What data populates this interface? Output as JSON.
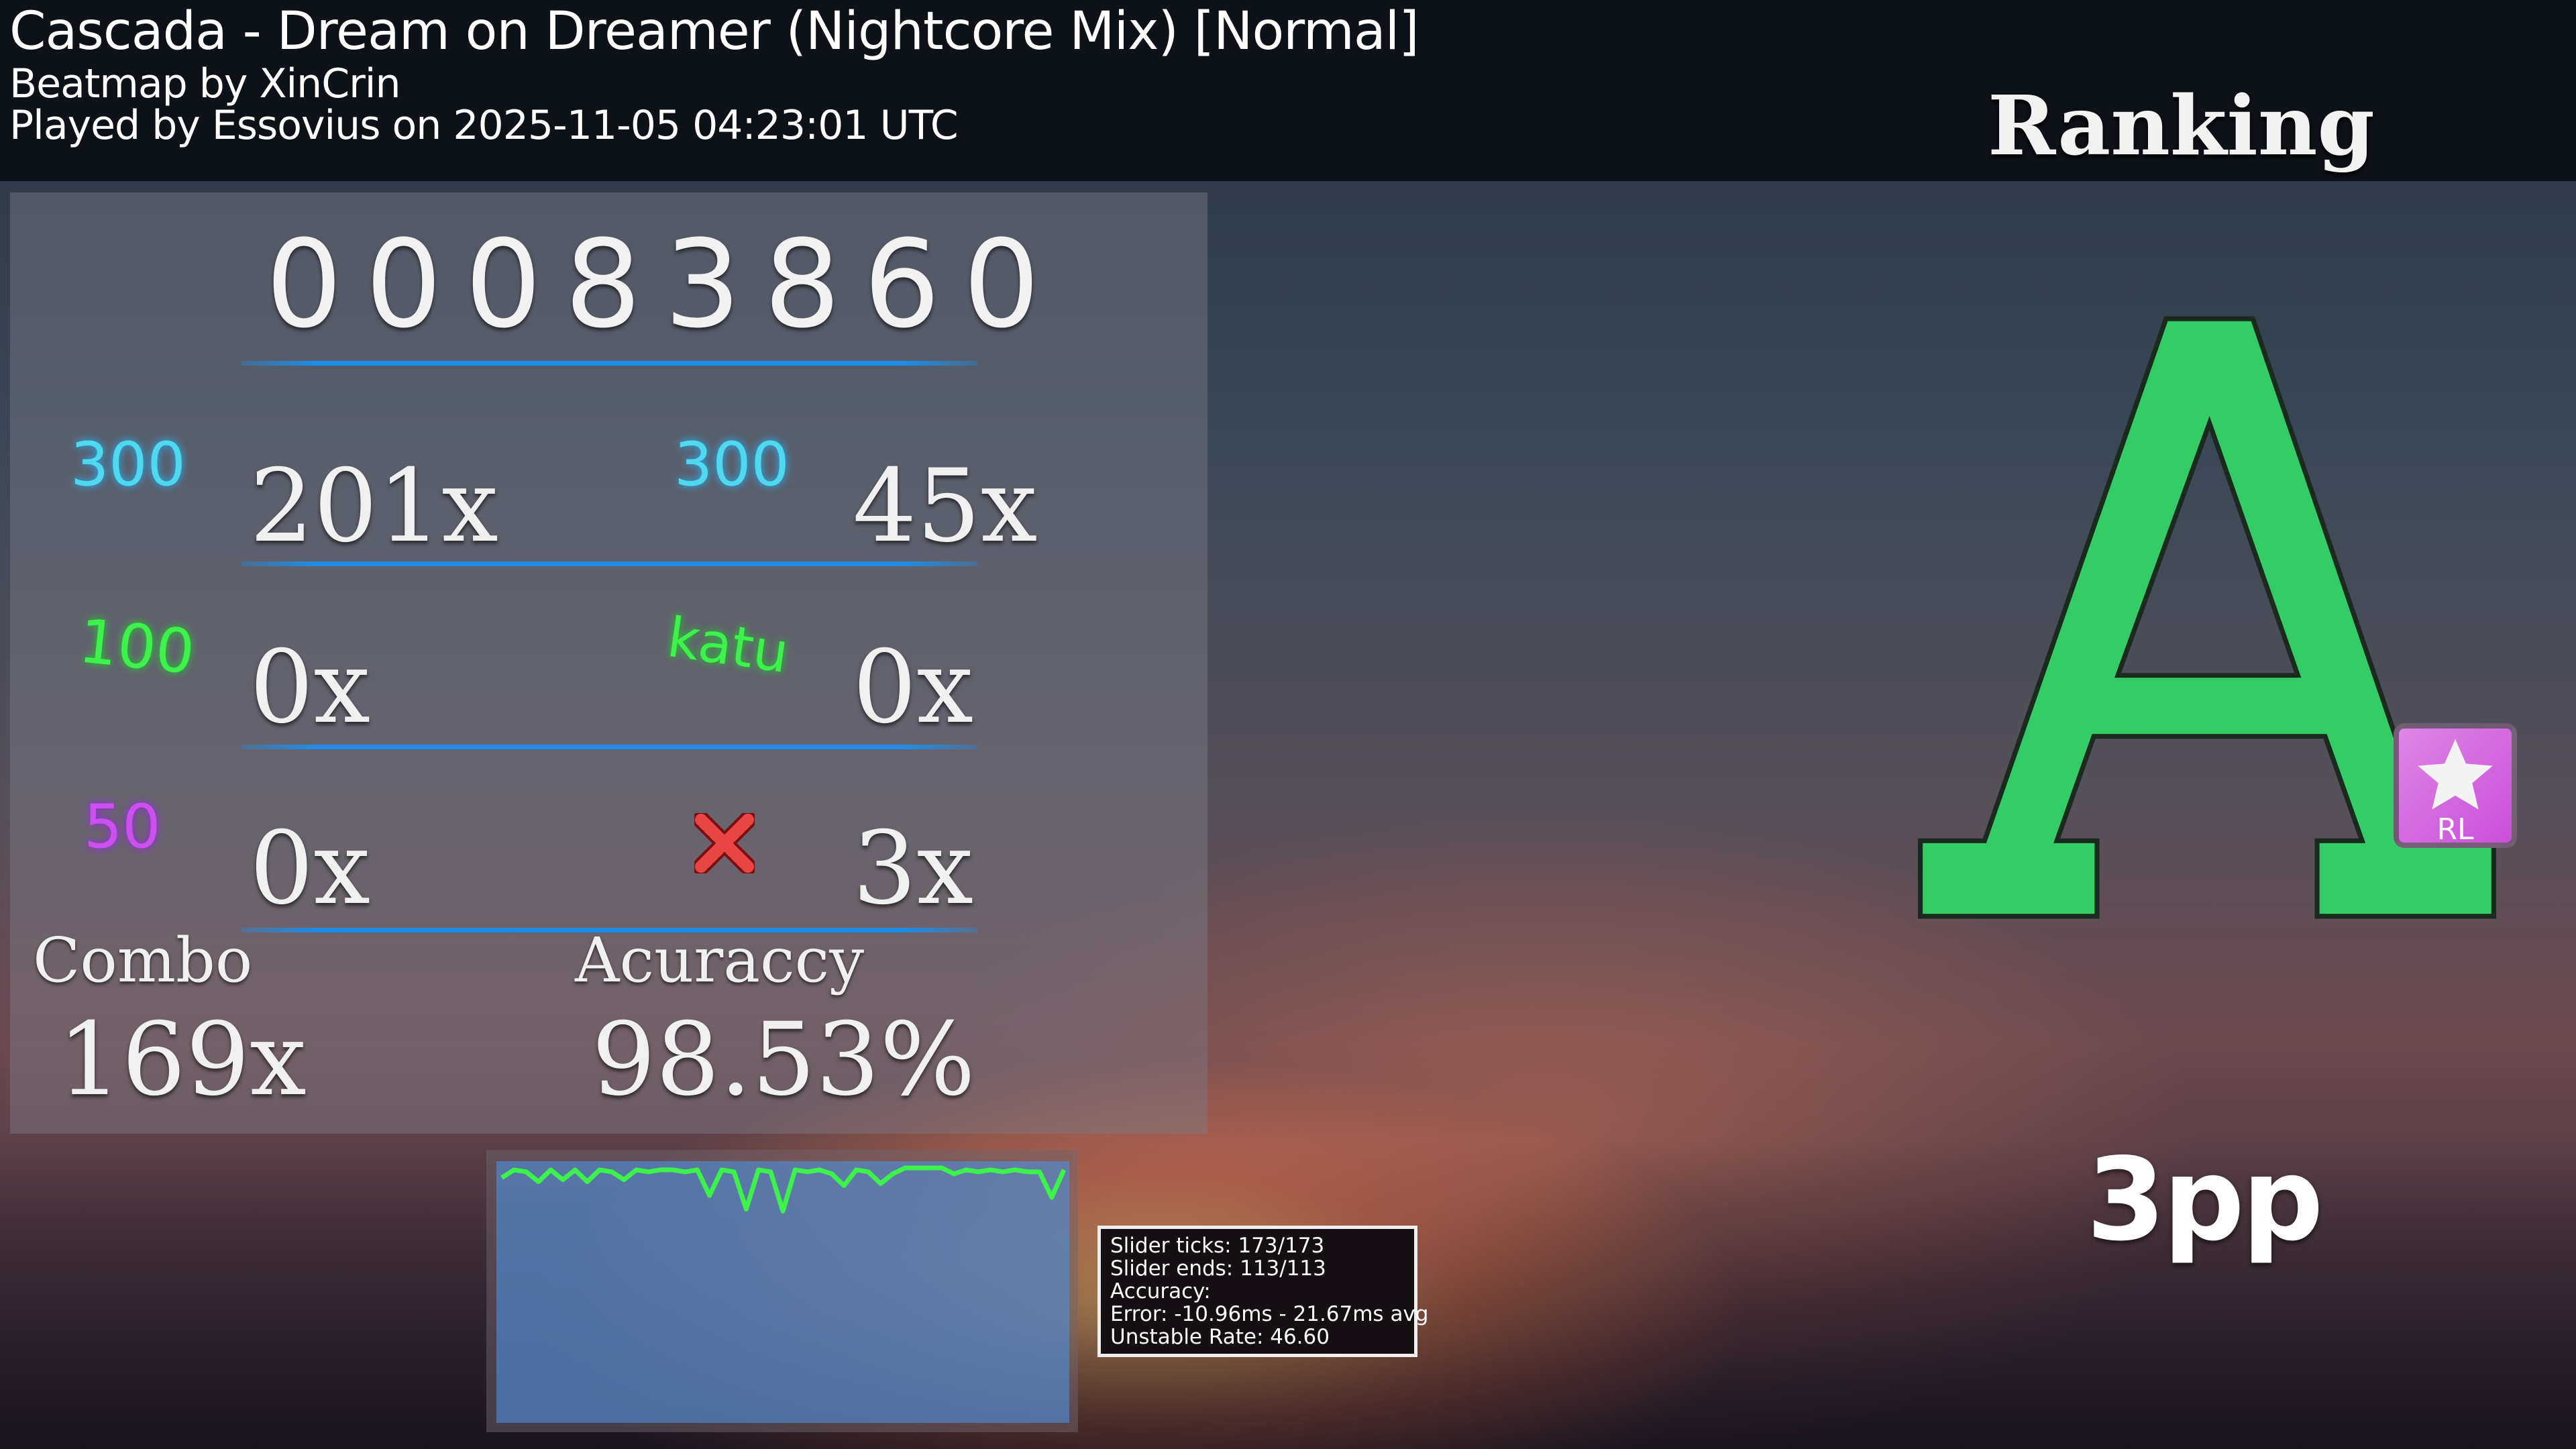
{
  "header": {
    "title": "Cascada - Dream on Dreamer (Nightcore Mix) [Normal]",
    "mapper": "Beatmap by XinCrin",
    "played": "Played by Essovius on 2025-11-05 04:23:01 UTC",
    "ranking": "Ranking"
  },
  "score": "00083860",
  "judgements": [
    {
      "label": "300",
      "value": "201x",
      "color": "#4fd9f0"
    },
    {
      "label": "300",
      "value": "45x",
      "color": "#4fd9f0"
    },
    {
      "label": "100",
      "value": "0x",
      "color": "#3df24a"
    },
    {
      "label": "katu",
      "value": "0x",
      "color": "#3df24a"
    },
    {
      "label": "50",
      "value": "0x",
      "color": "#cc4ff0"
    },
    {
      "label": "miss",
      "value": "3x",
      "color": "#e84545",
      "icon": "x-mark-icon"
    }
  ],
  "combo": {
    "label": "Combo",
    "value": "169x"
  },
  "accuracy": {
    "label": "Acuraccy",
    "value": "98.53%"
  },
  "stats": {
    "lines": [
      "Slider ticks: 173/173",
      "Slider ends: 113/113",
      "Accuracy:",
      "Error: -10.96ms - 21.67ms avg",
      "Unstable Rate: 46.60"
    ]
  },
  "grade": {
    "letter": "A",
    "color": "#33cc66"
  },
  "mod": {
    "label": "RL",
    "icon": "star-icon",
    "color": "#d36ae0"
  },
  "pp": "3pp",
  "hp_graph": {
    "color": "#3df24a",
    "values": [
      0.95,
      0.99,
      0.98,
      0.93,
      0.99,
      0.94,
      0.99,
      0.93,
      0.99,
      0.98,
      0.94,
      0.99,
      0.98,
      0.99,
      0.99,
      0.98,
      0.99,
      0.86,
      0.99,
      0.98,
      0.79,
      0.99,
      0.98,
      0.78,
      0.99,
      0.98,
      0.99,
      0.97,
      0.91,
      0.99,
      0.98,
      0.92,
      0.97,
      1,
      1,
      1,
      1,
      0.97,
      0.99,
      0.98,
      0.99,
      0.98,
      0.99,
      0.98,
      0.98,
      0.85,
      0.99
    ]
  }
}
